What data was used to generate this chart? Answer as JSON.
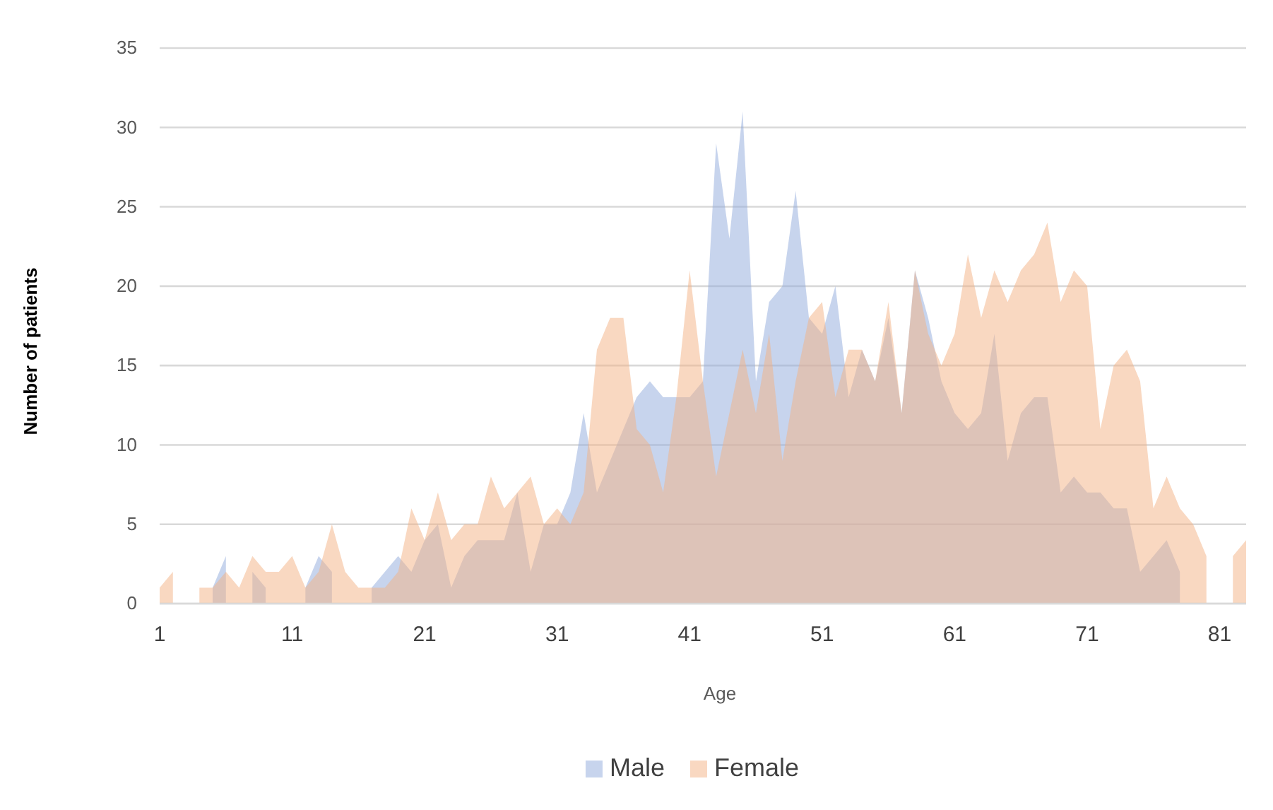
{
  "chart_data": {
    "type": "area",
    "xlabel": "Age",
    "ylabel": "Number of patients",
    "x": [
      1,
      2,
      3,
      4,
      5,
      6,
      7,
      8,
      9,
      10,
      11,
      12,
      13,
      14,
      15,
      16,
      17,
      18,
      19,
      20,
      21,
      22,
      23,
      24,
      25,
      26,
      27,
      28,
      29,
      30,
      31,
      32,
      33,
      34,
      35,
      36,
      37,
      38,
      39,
      40,
      41,
      42,
      43,
      44,
      45,
      46,
      47,
      48,
      49,
      50,
      51,
      52,
      53,
      54,
      55,
      56,
      57,
      58,
      59,
      60,
      61,
      62,
      63,
      64,
      65,
      66,
      67,
      68,
      69,
      70,
      71,
      72,
      73,
      74,
      75,
      76,
      77,
      78,
      79,
      80,
      81,
      82,
      83
    ],
    "xlim": [
      1,
      83
    ],
    "xticks": [
      1,
      11,
      21,
      31,
      41,
      51,
      61,
      71,
      81
    ],
    "ylim": [
      0,
      35
    ],
    "yticks": [
      0,
      5,
      10,
      15,
      20,
      25,
      30,
      35
    ],
    "grid": "y",
    "legend": "bottom",
    "series": [
      {
        "name": "Male",
        "color": "#8faadc",
        "values": [
          null,
          null,
          null,
          null,
          1,
          3,
          null,
          2,
          1,
          null,
          null,
          1,
          3,
          2,
          null,
          null,
          1,
          2,
          3,
          2,
          4,
          5,
          1,
          3,
          4,
          4,
          4,
          7,
          2,
          5,
          5,
          7,
          12,
          7,
          9,
          11,
          13,
          14,
          13,
          13,
          13,
          14,
          29,
          23,
          31,
          14,
          19,
          20,
          26,
          18,
          17,
          20,
          13,
          16,
          14,
          18,
          12,
          21,
          18,
          14,
          12,
          11,
          12,
          17,
          9,
          12,
          13,
          13,
          7,
          8,
          7,
          7,
          6,
          6,
          2,
          3,
          4,
          2,
          null,
          null,
          null,
          null,
          null
        ]
      },
      {
        "name": "Female",
        "color": "#f4b183",
        "values": [
          1,
          2,
          null,
          1,
          1,
          2,
          1,
          3,
          2,
          2,
          3,
          1,
          2,
          5,
          2,
          1,
          1,
          1,
          2,
          6,
          4,
          7,
          4,
          5,
          5,
          8,
          6,
          7,
          8,
          5,
          6,
          5,
          7,
          16,
          18,
          18,
          11,
          10,
          7,
          13,
          21,
          14,
          8,
          12,
          16,
          12,
          17,
          9,
          14,
          18,
          19,
          13,
          16,
          16,
          14,
          19,
          12,
          21,
          17,
          15,
          17,
          22,
          18,
          21,
          19,
          21,
          22,
          24,
          19,
          21,
          20,
          11,
          15,
          16,
          14,
          6,
          8,
          6,
          5,
          3,
          null,
          3,
          4
        ]
      }
    ]
  }
}
